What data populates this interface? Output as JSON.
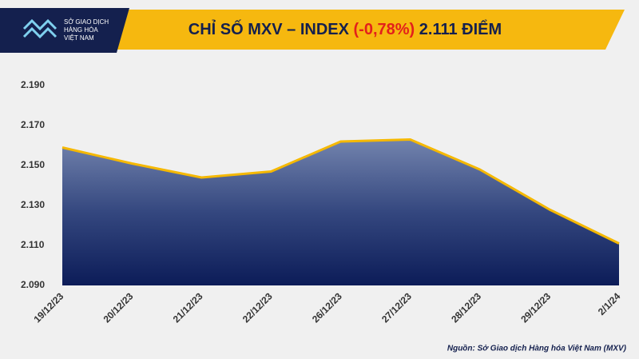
{
  "logo": {
    "line1": "SỞ GIAO DỊCH",
    "line2": "HÀNG HÓA",
    "line3": "VIỆT NAM"
  },
  "chart_data": {
    "type": "area",
    "title": "CHỈ SỐ MXV – INDEX",
    "title_change": "(-0,78%)",
    "title_value": "2.111 ĐIỂM",
    "categories": [
      "19/12/23",
      "20/12/23",
      "21/12/23",
      "22/12/23",
      "26/12/23",
      "27/12/23",
      "28/12/23",
      "29/12/23",
      "2/1/24"
    ],
    "values": [
      2159,
      2151,
      2144,
      2147,
      2162,
      2163,
      2148,
      2128,
      2111
    ],
    "ylim": [
      2090,
      2200
    ],
    "yticks": [
      {
        "value": 2090,
        "label": "2.090"
      },
      {
        "value": 2110,
        "label": "2.110"
      },
      {
        "value": 2130,
        "label": "2.130"
      },
      {
        "value": 2150,
        "label": "2.150"
      },
      {
        "value": 2170,
        "label": "2.170"
      },
      {
        "value": 2190,
        "label": "2.190"
      }
    ],
    "color": "#f5b800",
    "source": "Nguồn: Sở Giao dịch Hàng hóa Việt Nam (MXV)"
  }
}
